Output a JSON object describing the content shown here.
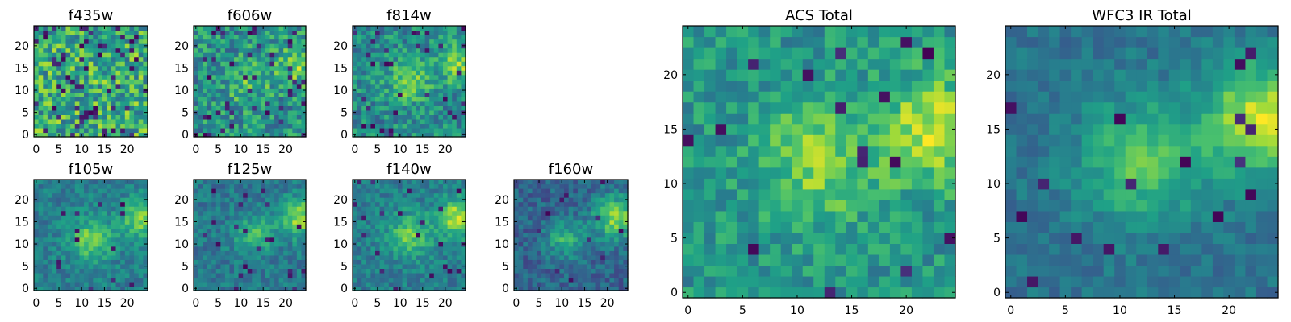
{
  "colormap": [
    "#440154",
    "#46337e",
    "#365c8d",
    "#277f8e",
    "#1fa187",
    "#4ac16d",
    "#a0da39",
    "#fde725"
  ],
  "chart_data": [
    {
      "type": "heatmap",
      "title": "f435w",
      "xlim": [
        0,
        24
      ],
      "ylim": [
        0,
        24
      ],
      "xticks": [
        0,
        5,
        10,
        15,
        20
      ],
      "yticks": [
        0,
        5,
        10,
        15,
        20
      ],
      "blobs": [],
      "noise": 0.55,
      "base": 0.62,
      "lowFrac": 0.1
    },
    {
      "type": "heatmap",
      "title": "f606w",
      "xlim": [
        0,
        24
      ],
      "ylim": [
        0,
        24
      ],
      "xticks": [
        0,
        5,
        10,
        15,
        20
      ],
      "yticks": [
        0,
        5,
        10,
        15,
        20
      ],
      "blobs": [
        [
          12,
          12,
          0.18,
          4
        ],
        [
          23,
          16,
          0.3,
          3
        ]
      ],
      "noise": 0.45,
      "base": 0.5,
      "lowFrac": 0.07
    },
    {
      "type": "heatmap",
      "title": "f814w",
      "xlim": [
        0,
        24
      ],
      "ylim": [
        0,
        24
      ],
      "xticks": [
        0,
        5,
        10,
        15,
        20
      ],
      "yticks": [
        0,
        5,
        10,
        15,
        20
      ],
      "blobs": [
        [
          12,
          12,
          0.28,
          3.5
        ],
        [
          23,
          16,
          0.3,
          3
        ]
      ],
      "noise": 0.38,
      "base": 0.48,
      "lowFrac": 0.05
    },
    {
      "type": "heatmap",
      "title": "f105w",
      "xlim": [
        0,
        24
      ],
      "ylim": [
        0,
        24
      ],
      "xticks": [
        0,
        5,
        10,
        15,
        20
      ],
      "yticks": [
        0,
        5,
        10,
        15,
        20
      ],
      "blobs": [
        [
          12,
          11,
          0.35,
          3.5
        ],
        [
          23,
          16,
          0.38,
          3
        ]
      ],
      "noise": 0.25,
      "base": 0.42,
      "lowFrac": 0.03
    },
    {
      "type": "heatmap",
      "title": "f125w",
      "xlim": [
        0,
        24
      ],
      "ylim": [
        0,
        24
      ],
      "xticks": [
        0,
        5,
        10,
        15,
        20
      ],
      "yticks": [
        0,
        5,
        10,
        15,
        20
      ],
      "blobs": [
        [
          13,
          12,
          0.3,
          3
        ],
        [
          23,
          16,
          0.45,
          3
        ]
      ],
      "noise": 0.25,
      "base": 0.4,
      "lowFrac": 0.03
    },
    {
      "type": "heatmap",
      "title": "f140w",
      "xlim": [
        0,
        24
      ],
      "ylim": [
        0,
        24
      ],
      "xticks": [
        0,
        5,
        10,
        15,
        20
      ],
      "yticks": [
        0,
        5,
        10,
        15,
        20
      ],
      "blobs": [
        [
          12,
          12,
          0.32,
          3.5
        ],
        [
          23,
          16,
          0.5,
          3
        ]
      ],
      "noise": 0.25,
      "base": 0.42,
      "lowFrac": 0.03
    },
    {
      "type": "heatmap",
      "title": "f160w",
      "xlim": [
        0,
        24
      ],
      "ylim": [
        0,
        24
      ],
      "xticks": [
        0,
        5,
        10,
        15,
        20
      ],
      "yticks": [
        0,
        5,
        10,
        15,
        20
      ],
      "blobs": [
        [
          11,
          11,
          0.32,
          3
        ],
        [
          22,
          16,
          0.5,
          3.5
        ]
      ],
      "noise": 0.25,
      "base": 0.32,
      "lowFrac": 0.03
    },
    {
      "type": "heatmap",
      "title": "ACS Total",
      "xlim": [
        0,
        24
      ],
      "ylim": [
        0,
        24
      ],
      "xticks": [
        0,
        5,
        10,
        15,
        20
      ],
      "yticks": [
        0,
        5,
        10,
        15,
        20
      ],
      "blobs": [
        [
          12,
          12,
          0.28,
          4
        ],
        [
          23,
          15,
          0.38,
          3.5
        ]
      ],
      "noise": 0.3,
      "base": 0.52,
      "lowFrac": 0.03
    },
    {
      "type": "heatmap",
      "title": "WFC3 IR Total",
      "xlim": [
        0,
        24
      ],
      "ylim": [
        0,
        24
      ],
      "xticks": [
        0,
        5,
        10,
        15,
        20
      ],
      "yticks": [
        0,
        5,
        10,
        15,
        20
      ],
      "blobs": [
        [
          12,
          12,
          0.35,
          4
        ],
        [
          23,
          16,
          0.55,
          3.5
        ]
      ],
      "noise": 0.18,
      "base": 0.38,
      "lowFrac": 0.02
    }
  ]
}
